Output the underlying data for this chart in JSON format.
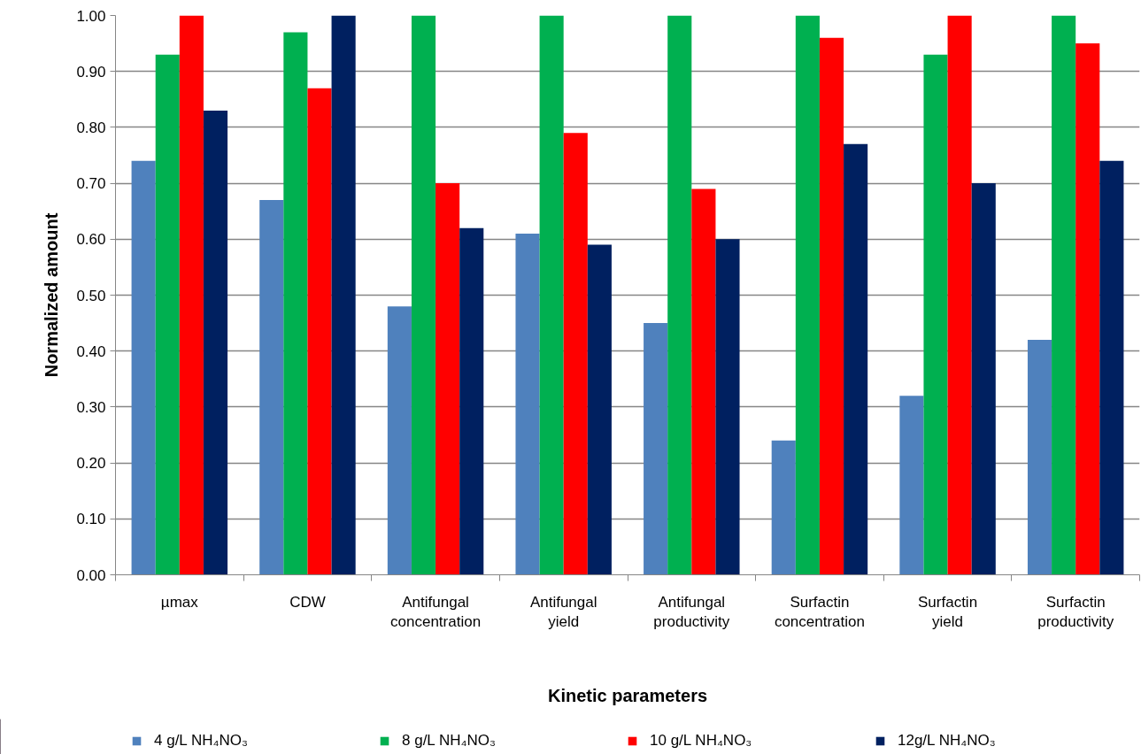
{
  "chart_data": {
    "type": "bar",
    "xlabel": "Kinetic parameters",
    "ylabel": "Normalized amount",
    "categories": [
      "µmax",
      "CDW",
      "Antifungal concentration",
      "Antifungal yield",
      "Antifungal productivity",
      "Surfactin concentration",
      "Surfactin yield",
      "Surfactin productivity"
    ],
    "series": [
      {
        "name": "4 g/L NH₄NO₃",
        "color": "#4f81bd",
        "values": [
          0.74,
          0.67,
          0.48,
          0.61,
          0.45,
          0.24,
          0.32,
          0.42
        ]
      },
      {
        "name": "8 g/L NH₄NO₃",
        "color": "#00b050",
        "values": [
          0.93,
          0.97,
          1.0,
          1.0,
          1.0,
          1.0,
          0.93,
          1.0
        ]
      },
      {
        "name": "10 g/L NH₄NO₃",
        "color": "#ff0000",
        "values": [
          1.0,
          0.87,
          0.7,
          0.79,
          0.69,
          0.96,
          1.0,
          0.95
        ]
      },
      {
        "name": "12g/L NH₄NO₃",
        "color": "#002060",
        "values": [
          0.83,
          1.0,
          0.62,
          0.59,
          0.6,
          0.77,
          0.7,
          0.74
        ]
      }
    ],
    "ylim": [
      0,
      1.0
    ],
    "yticks": [
      {
        "value": 0,
        "label": "0.00"
      },
      {
        "value": 0.1,
        "label": "0.10"
      },
      {
        "value": 0.2,
        "label": "0.20"
      },
      {
        "value": 0.3,
        "label": "0.30"
      },
      {
        "value": 0.4,
        "label": "0.40"
      },
      {
        "value": 0.5,
        "label": "0.50"
      },
      {
        "value": 0.6,
        "label": "0.60"
      },
      {
        "value": 0.7,
        "label": "0.70"
      },
      {
        "value": 0.8,
        "label": "0.80"
      },
      {
        "value": 0.9,
        "label": "0.90"
      },
      {
        "value": 1.0,
        "label": "1.00"
      }
    ],
    "grid": "y",
    "legend": "bottom"
  }
}
